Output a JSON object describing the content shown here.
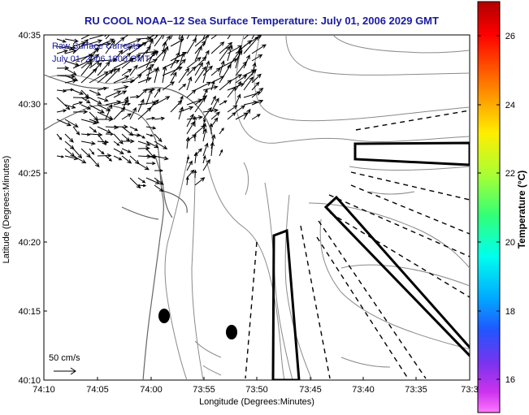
{
  "title": "RU COOL  NOAA–12  Sea Surface Temperature:  July 01, 2006 2029 GMT",
  "overlay": {
    "line1": "Raw Surface Currents",
    "line2": "July 01, 2006 1800 GMT"
  },
  "scale_label": "50 cm/s",
  "xaxis": {
    "label": "Longitude (Degrees:Minutes)",
    "ticks": [
      "74:10",
      "74:05",
      "74:00",
      "73:55",
      "73:50",
      "73:45",
      "73:40",
      "73:35",
      "73:3"
    ]
  },
  "yaxis": {
    "label": "Latitude (Degrees:Minutes)",
    "ticks": [
      "40:35",
      "40:30",
      "40:25",
      "40:20",
      "40:15",
      "40:10"
    ]
  },
  "colorbar": {
    "label": "Temperature (°C)",
    "ticks": [
      "26",
      "24",
      "22",
      "20",
      "18",
      "16"
    ],
    "colors": [
      "#cc0000",
      "#ff2200",
      "#ff7700",
      "#ffcc00",
      "#e8ff00",
      "#99ff22",
      "#33ff66",
      "#00ffcc",
      "#00ccff",
      "#0077ff",
      "#3344ff",
      "#8833ee",
      "#cc33ee",
      "#ff66ff"
    ]
  }
}
